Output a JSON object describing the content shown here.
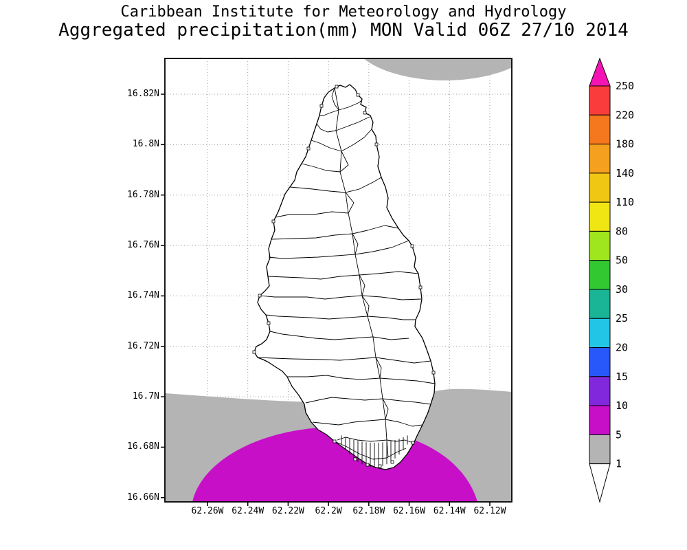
{
  "header": {
    "title_line1": "Caribbean Institute for Meteorology and Hydrology",
    "title_line2": "Aggregated precipitation(mm) MON Valid 06Z 27/10 2014"
  },
  "map": {
    "y_axis_labels": [
      "16.82N",
      "16.8N",
      "16.78N",
      "16.76N",
      "16.74N",
      "16.72N",
      "16.7N",
      "16.68N",
      "16.66N"
    ],
    "x_axis_labels": [
      "62.26W",
      "62.24W",
      "62.22W",
      "62.2W",
      "62.18W",
      "62.16W",
      "62.14W",
      "62.12W"
    ],
    "colors": {
      "grid": "#999999",
      "rain_1_to_5_gray": "#b4b4b4",
      "rain_5_to_10_magenta": "#c80fc8"
    },
    "shaded_regions": [
      {
        "area": "offshore blob north-east of island, top of map",
        "value_range_mm": "1-5",
        "color": "#b4b4b4"
      },
      {
        "area": "offshore band across south of map below 16.7N",
        "value_range_mm": "1-5",
        "color": "#b4b4b4"
      },
      {
        "area": "offshore core at bottom of map around 16.66-16.69N",
        "value_range_mm": "5-10",
        "color": "#c80fc8"
      }
    ]
  },
  "colorbar": {
    "labels": [
      "250",
      "220",
      "180",
      "140",
      "110",
      "80",
      "50",
      "30",
      "25",
      "20",
      "15",
      "10",
      "5",
      "1"
    ],
    "colors_top_to_bottom": [
      "#f414b4",
      "#fa3c3c",
      "#f5781e",
      "#f5a01e",
      "#f0c814",
      "#f0e614",
      "#a0e61e",
      "#32c832",
      "#19b596",
      "#23c5e6",
      "#2857fa",
      "#8228dc",
      "#c80fc8",
      "#b4b4b4",
      "#ffffff"
    ]
  }
}
